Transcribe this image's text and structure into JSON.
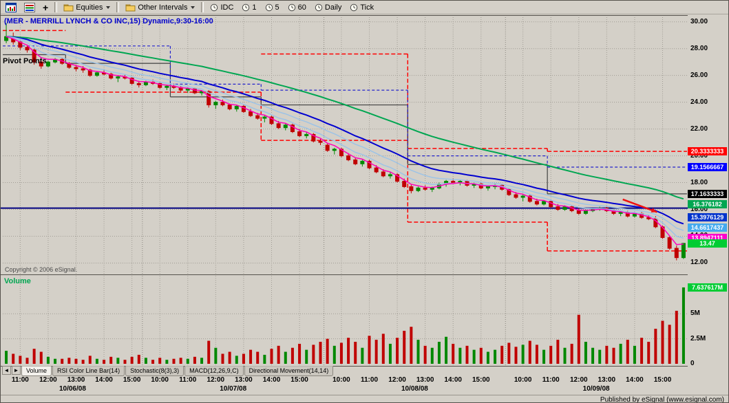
{
  "toolbar": {
    "plus_label": "+",
    "equities_label": "Equities",
    "other_intervals_label": "Other Intervals",
    "interval_buttons": [
      "IDC",
      "1",
      "5",
      "60",
      "Daily",
      "Tick"
    ]
  },
  "chart": {
    "title": "(MER - MERRILL LYNCH & CO INC,15) Dynamic,9:30-16:00",
    "pivot_label": "Pivot Points",
    "copyright": "Copyright © 2006 eSignal.",
    "volume_label": "Volume"
  },
  "tab_nav": {
    "left": "◄",
    "right": "►"
  },
  "tabs": [
    {
      "label": "Volume",
      "active": true
    },
    {
      "label": "RSI Color Line Bar(14)",
      "active": false
    },
    {
      "label": "Stochastic(8(3),3)",
      "active": false
    },
    {
      "label": "MACD(12,26,9,C)",
      "active": false
    },
    {
      "label": "Directional Movement(14,14)",
      "active": false
    }
  ],
  "status_bar": {
    "text": "Published by eSignal (www.esignal.com)"
  },
  "chart_data": {
    "type": "candlestick",
    "symbol": "MER",
    "interval_minutes": 15,
    "price_range": [
      11.1,
      30.5
    ],
    "volume_range": [
      0,
      8.8
    ],
    "price_ticks": [
      {
        "value": 30,
        "label": "30.00"
      },
      {
        "value": 28,
        "label": "28.00"
      },
      {
        "value": 26,
        "label": "26.00"
      },
      {
        "value": 24,
        "label": "24.00"
      },
      {
        "value": 22,
        "label": "22.00"
      },
      {
        "value": 20,
        "label": "20.00"
      },
      {
        "value": 18,
        "label": "18.00"
      },
      {
        "value": 16,
        "label": "16.00"
      },
      {
        "value": 14,
        "label": "14.00"
      },
      {
        "value": 12,
        "label": "12.00"
      }
    ],
    "volume_ticks": [
      {
        "value": 5,
        "label": "5M"
      },
      {
        "value": 2.5,
        "label": "2.5M"
      },
      {
        "value": 0,
        "label": "0"
      }
    ],
    "price_badges": [
      {
        "label": "20.3333333",
        "value": 20.3333333,
        "bg": "#ff0000",
        "fg": "#ffffff"
      },
      {
        "label": "19.1566667",
        "value": 19.1566667,
        "bg": "#0000ff",
        "fg": "#ffffff"
      },
      {
        "label": "17.1633333",
        "value": 17.1633333,
        "bg": "#000000",
        "fg": "#ffffff"
      },
      {
        "label": "16.376182",
        "value": 16.376182,
        "bg": "#00a651",
        "fg": "#ffffff"
      },
      {
        "label": "15.3976129",
        "value": 15.3976129,
        "bg": "#0033cc",
        "fg": "#ffffff"
      },
      {
        "label": "14.6617437",
        "value": 14.6617437,
        "bg": "#44aaee",
        "fg": "#ffffff"
      },
      {
        "label": "13.8947111",
        "value": 13.8947111,
        "bg": "#ff00cc",
        "fg": "#ffffff"
      },
      {
        "label": "13.47",
        "value": 13.47,
        "bg": "#00cc33",
        "fg": "#ffffff"
      }
    ],
    "volume_badge": {
      "label": "7.637617M",
      "value": 7.637617,
      "bg": "#00cc33",
      "fg": "#ffffff"
    },
    "day_spans": [
      {
        "start": 0,
        "end": 20,
        "date": "10/06/08"
      },
      {
        "start": 20,
        "end": 46,
        "date": "10/07/08"
      },
      {
        "start": 46,
        "end": 72,
        "date": "10/08/08"
      },
      {
        "start": 72,
        "end": 98,
        "date": "10/09/08"
      }
    ],
    "hour_marks": [
      {
        "bar": 2,
        "label": "11:00"
      },
      {
        "bar": 6,
        "label": "12:00"
      },
      {
        "bar": 10,
        "label": "13:00"
      },
      {
        "bar": 14,
        "label": "14:00"
      },
      {
        "bar": 18,
        "label": "15:00"
      },
      {
        "bar": 22,
        "label": "10:00"
      },
      {
        "bar": 26,
        "label": "11:00"
      },
      {
        "bar": 30,
        "label": "12:00"
      },
      {
        "bar": 34,
        "label": "13:00"
      },
      {
        "bar": 38,
        "label": "14:00"
      },
      {
        "bar": 42,
        "label": "15:00"
      },
      {
        "bar": 48,
        "label": "10:00"
      },
      {
        "bar": 52,
        "label": "11:00"
      },
      {
        "bar": 56,
        "label": "12:00"
      },
      {
        "bar": 60,
        "label": "13:00"
      },
      {
        "bar": 64,
        "label": "14:00"
      },
      {
        "bar": 68,
        "label": "15:00"
      },
      {
        "bar": 74,
        "label": "10:00"
      },
      {
        "bar": 78,
        "label": "11:00"
      },
      {
        "bar": 82,
        "label": "12:00"
      },
      {
        "bar": 86,
        "label": "13:00"
      },
      {
        "bar": 90,
        "label": "14:00"
      },
      {
        "bar": 94,
        "label": "15:00"
      }
    ],
    "moving_averages": [
      {
        "name": "ema-slow",
        "period": 45,
        "color": "#00a651",
        "width": 2
      },
      {
        "name": "ema-medium",
        "period": 18,
        "color": "#0000d0",
        "width": 2
      },
      {
        "name": "ema-band-a",
        "period": 12,
        "color": "#9dc3e6",
        "width": 1.5
      },
      {
        "name": "ema-band-b",
        "period": 7,
        "color": "#9dc3e6",
        "width": 1.5
      },
      {
        "name": "ema-fast",
        "period": 4,
        "color": "#ff00bb",
        "width": 1.5
      }
    ],
    "pivot_lines": [
      {
        "name": "resistance",
        "color": "#ff0000",
        "dash": "6 3",
        "width": 1.5,
        "segments": [
          [
            0,
            9,
            29.35
          ],
          [
            37,
            58,
            27.6
          ],
          [
            58,
            78,
            20.55
          ],
          [
            78,
            98,
            20.3333333
          ]
        ]
      },
      {
        "name": "support",
        "color": "#ff0000",
        "dash": "6 3",
        "width": 1.5,
        "segments": [
          [
            9,
            37,
            24.75
          ],
          [
            37,
            58,
            21.15
          ],
          [
            58,
            78,
            15.05
          ],
          [
            78,
            98,
            12.9
          ]
        ]
      },
      {
        "name": "pivot",
        "color": "#404040",
        "dash": "",
        "width": 1.2,
        "segments": [
          [
            0,
            9,
            27.55
          ],
          [
            9,
            24,
            26.9
          ],
          [
            24,
            37,
            24.4
          ],
          [
            37,
            58,
            23.8
          ],
          [
            58,
            78,
            19.35
          ],
          [
            78,
            98,
            17.1633333
          ]
        ]
      },
      {
        "name": "mid",
        "color": "#2222cc",
        "dash": "4 3",
        "width": 1.2,
        "segments": [
          [
            0,
            24,
            28.2
          ],
          [
            24,
            37,
            25.35
          ],
          [
            37,
            58,
            24.9
          ],
          [
            58,
            78,
            20.0
          ],
          [
            78,
            98,
            19.1566667
          ]
        ]
      }
    ],
    "horizontal_line": {
      "value": 16.1,
      "color": "#000080",
      "width": 2
    },
    "arrow": {
      "bar1": 88.3,
      "price1": 16.75,
      "bar2": 93.2,
      "price2": 15.8,
      "color": "#ee1111"
    },
    "colors": {
      "up": "#008800",
      "down": "#c00000",
      "grid": "#a09c94",
      "day_grid": "#8a867e"
    },
    "candles": [
      [
        28.6,
        29.9,
        28.4,
        28.9,
        1.3
      ],
      [
        28.9,
        29.2,
        28.3,
        28.5,
        1.0
      ],
      [
        28.5,
        28.7,
        27.9,
        28.1,
        0.8
      ],
      [
        28.1,
        28.3,
        27.7,
        27.9,
        0.6
      ],
      [
        27.9,
        28.0,
        26.8,
        27.0,
        1.5
      ],
      [
        27.0,
        27.3,
        26.5,
        26.7,
        1.2
      ],
      [
        26.7,
        27.1,
        26.6,
        27.0,
        0.7
      ],
      [
        27.0,
        27.3,
        26.9,
        27.2,
        0.5
      ],
      [
        27.2,
        27.3,
        26.8,
        26.9,
        0.5
      ],
      [
        26.9,
        27.0,
        26.5,
        26.6,
        0.6
      ],
      [
        26.6,
        26.8,
        26.3,
        26.5,
        0.5
      ],
      [
        26.5,
        26.7,
        26.2,
        26.4,
        0.4
      ],
      [
        26.4,
        26.5,
        25.9,
        26.0,
        0.8
      ],
      [
        26.0,
        26.3,
        25.9,
        26.2,
        0.5
      ],
      [
        26.2,
        26.4,
        26.0,
        26.1,
        0.4
      ],
      [
        26.1,
        26.2,
        25.7,
        25.8,
        0.7
      ],
      [
        25.8,
        26.0,
        25.5,
        25.9,
        0.6
      ],
      [
        25.9,
        26.1,
        25.7,
        25.8,
        0.4
      ],
      [
        25.8,
        25.9,
        25.3,
        25.4,
        0.7
      ],
      [
        25.4,
        25.6,
        25.1,
        25.3,
        0.9
      ],
      [
        25.3,
        25.6,
        25.2,
        25.5,
        0.6
      ],
      [
        25.5,
        25.7,
        25.3,
        25.4,
        0.4
      ],
      [
        25.4,
        25.5,
        25.0,
        25.1,
        0.6
      ],
      [
        25.1,
        25.3,
        24.9,
        25.2,
        0.4
      ],
      [
        25.2,
        25.4,
        25.0,
        25.1,
        0.5
      ],
      [
        25.1,
        25.2,
        24.8,
        24.9,
        0.6
      ],
      [
        24.9,
        25.1,
        24.7,
        25.0,
        0.5
      ],
      [
        25.0,
        25.1,
        24.6,
        24.7,
        0.7
      ],
      [
        24.7,
        24.9,
        24.5,
        24.8,
        0.6
      ],
      [
        24.8,
        24.9,
        23.6,
        23.8,
        2.3
      ],
      [
        23.8,
        24.1,
        23.5,
        24.0,
        1.6
      ],
      [
        24.0,
        24.2,
        23.7,
        23.8,
        1.0
      ],
      [
        23.8,
        23.9,
        23.4,
        23.5,
        1.2
      ],
      [
        23.5,
        23.8,
        23.3,
        23.7,
        0.8
      ],
      [
        23.7,
        23.8,
        23.2,
        23.3,
        1.0
      ],
      [
        23.3,
        23.5,
        22.9,
        23.0,
        1.4
      ],
      [
        23.0,
        23.2,
        22.7,
        22.8,
        1.2
      ],
      [
        22.8,
        23.0,
        22.5,
        22.9,
        0.9
      ],
      [
        22.9,
        23.0,
        22.3,
        22.4,
        1.5
      ],
      [
        22.4,
        22.6,
        22.0,
        22.1,
        1.8
      ],
      [
        22.1,
        22.4,
        21.9,
        22.3,
        1.2
      ],
      [
        22.3,
        22.4,
        21.7,
        21.8,
        1.6
      ],
      [
        21.8,
        22.0,
        21.4,
        21.5,
        2.0
      ],
      [
        21.5,
        21.8,
        21.3,
        21.6,
        1.4
      ],
      [
        21.6,
        21.7,
        21.0,
        21.1,
        1.9
      ],
      [
        21.1,
        21.3,
        20.8,
        21.0,
        2.2
      ],
      [
        20.8,
        20.9,
        20.3,
        20.4,
        2.5
      ],
      [
        20.4,
        20.6,
        20.1,
        20.5,
        1.8
      ],
      [
        20.5,
        20.6,
        19.9,
        20.0,
        2.1
      ],
      [
        20.0,
        20.2,
        19.6,
        19.7,
        2.6
      ],
      [
        19.7,
        19.9,
        19.3,
        19.4,
        2.2
      ],
      [
        19.4,
        19.7,
        19.2,
        19.6,
        1.6
      ],
      [
        19.6,
        19.7,
        19.0,
        19.1,
        2.8
      ],
      [
        19.1,
        19.3,
        18.7,
        18.8,
        2.4
      ],
      [
        18.8,
        19.0,
        18.4,
        18.5,
        3.0
      ],
      [
        18.5,
        18.8,
        18.3,
        18.6,
        2.0
      ],
      [
        18.6,
        18.7,
        18.0,
        18.1,
        2.6
      ],
      [
        18.1,
        18.3,
        17.6,
        17.7,
        3.3
      ],
      [
        17.7,
        17.9,
        17.2,
        17.4,
        3.7
      ],
      [
        17.4,
        17.7,
        17.3,
        17.6,
        2.4
      ],
      [
        17.6,
        17.8,
        17.4,
        17.5,
        1.8
      ],
      [
        17.5,
        17.7,
        17.3,
        17.6,
        1.6
      ],
      [
        17.6,
        18.0,
        17.5,
        17.9,
        2.2
      ],
      [
        17.9,
        18.2,
        17.7,
        18.1,
        2.7
      ],
      [
        18.1,
        18.3,
        17.9,
        18.0,
        2.0
      ],
      [
        18.0,
        18.2,
        17.8,
        18.1,
        1.6
      ],
      [
        18.1,
        18.2,
        17.7,
        17.8,
        1.8
      ],
      [
        17.8,
        18.0,
        17.6,
        17.9,
        1.4
      ],
      [
        17.9,
        18.0,
        17.5,
        17.6,
        1.6
      ],
      [
        17.6,
        17.8,
        17.4,
        17.7,
        1.2
      ],
      [
        17.7,
        17.9,
        17.5,
        17.8,
        1.4
      ],
      [
        17.8,
        17.9,
        17.4,
        17.5,
        1.8
      ],
      [
        17.5,
        17.6,
        17.0,
        17.1,
        2.1
      ],
      [
        17.1,
        17.3,
        16.8,
        16.9,
        1.7
      ],
      [
        16.9,
        17.1,
        16.6,
        17.0,
        1.9
      ],
      [
        17.0,
        17.1,
        16.5,
        16.6,
        2.3
      ],
      [
        16.6,
        16.8,
        16.3,
        16.4,
        1.9
      ],
      [
        16.4,
        16.7,
        16.3,
        16.6,
        1.4
      ],
      [
        16.6,
        16.7,
        16.1,
        16.2,
        1.8
      ],
      [
        16.2,
        16.4,
        15.9,
        16.0,
        2.4
      ],
      [
        16.0,
        16.3,
        15.9,
        16.2,
        1.6
      ],
      [
        16.2,
        16.3,
        15.8,
        15.9,
        2.0
      ],
      [
        15.9,
        16.1,
        15.6,
        15.7,
        4.9
      ],
      [
        15.7,
        16.0,
        15.6,
        15.9,
        2.2
      ],
      [
        15.9,
        16.1,
        15.8,
        16.0,
        1.6
      ],
      [
        16.0,
        16.2,
        15.9,
        16.1,
        1.4
      ],
      [
        16.1,
        16.2,
        15.8,
        15.9,
        1.8
      ],
      [
        15.9,
        16.0,
        15.6,
        15.7,
        1.6
      ],
      [
        15.7,
        15.9,
        15.5,
        15.8,
        2.0
      ],
      [
        15.8,
        15.9,
        15.4,
        15.5,
        2.4
      ],
      [
        15.5,
        15.8,
        15.4,
        15.7,
        1.8
      ],
      [
        15.7,
        15.8,
        15.3,
        15.4,
        2.6
      ],
      [
        15.4,
        15.6,
        15.2,
        15.3,
        2.2
      ],
      [
        15.3,
        15.5,
        14.6,
        14.7,
        3.5
      ],
      [
        14.7,
        14.8,
        13.8,
        13.9,
        4.3
      ],
      [
        13.9,
        14.0,
        13.0,
        13.1,
        3.9
      ],
      [
        13.1,
        13.3,
        12.2,
        12.4,
        5.3
      ],
      [
        12.4,
        13.5,
        12.3,
        13.47,
        7.637617
      ]
    ]
  }
}
